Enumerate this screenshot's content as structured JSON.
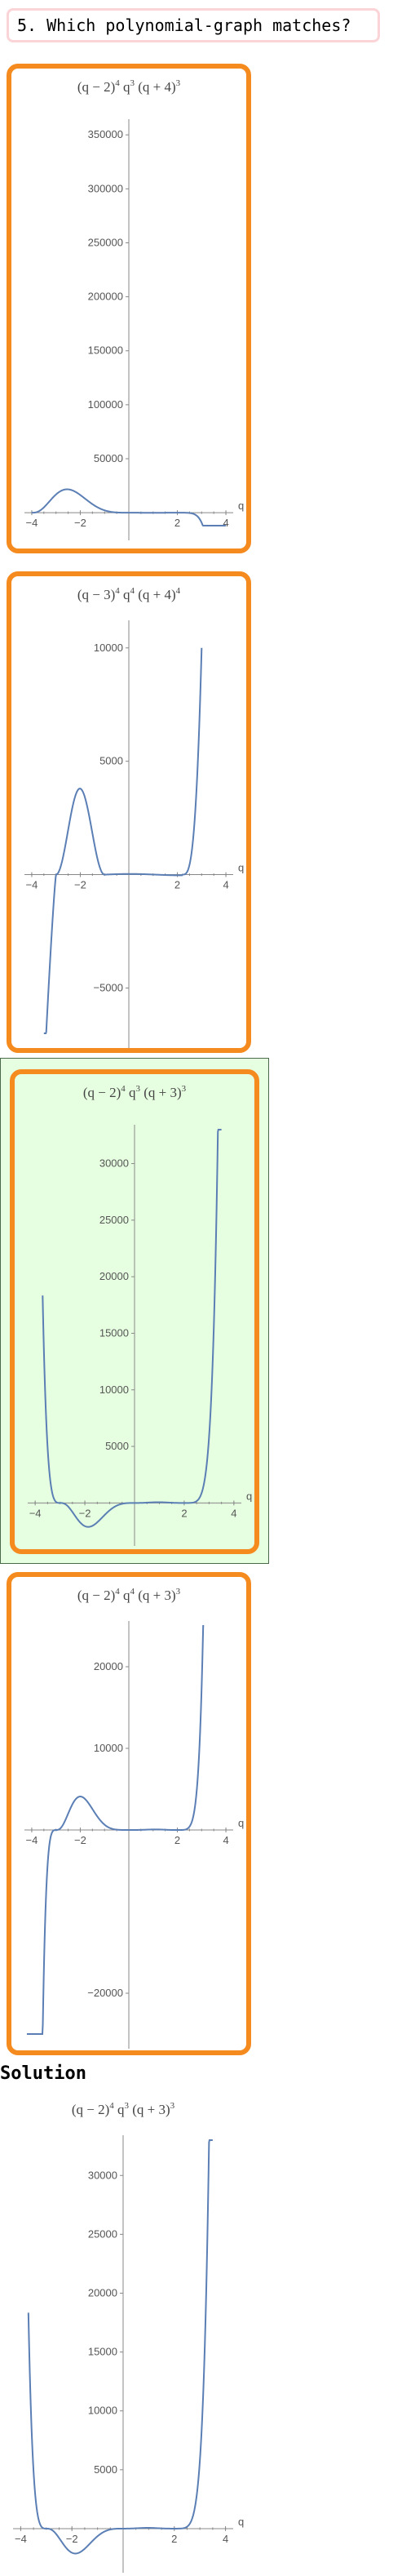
{
  "question": {
    "text": "5. Which polynomial-graph matches?"
  },
  "solution": {
    "label": "Solution"
  },
  "colors": {
    "option_border": "#f58a1f",
    "selected_bg": "#e6ffe0",
    "curve": "#5b7fb5",
    "question_border": "#fbd4d8"
  },
  "chart_data": [
    {
      "id": "opt1",
      "type": "line",
      "title": {
        "a": "(q − 2)",
        "ae": "4",
        "b": " q",
        "be": "3",
        "c": " (q + 4)",
        "ce": "3"
      },
      "xlabel": "q",
      "xlim": [
        -4.3,
        4.3
      ],
      "ylim": [
        -12000,
        360000
      ],
      "xticks": [
        -4,
        -2,
        2,
        4
      ],
      "xtick_labels": [
        "−4",
        "−2",
        "2",
        "4"
      ],
      "yticks": [
        50000,
        100000,
        150000,
        200000,
        250000,
        300000,
        350000
      ],
      "ytick_labels": [
        "50000",
        "100000",
        "150000",
        "200000",
        "250000",
        "300000",
        "350000"
      ],
      "coef": [
        [
          2,
          4
        ],
        [
          0,
          3
        ],
        [
          -4,
          3
        ]
      ],
      "sign": -1,
      "xrange": [
        -4,
        4
      ]
    },
    {
      "id": "opt2",
      "type": "line",
      "title": {
        "a": "(q − 3)",
        "ae": "4",
        "b": " q",
        "be": "4",
        "c": " (q + 4)",
        "ce": "4"
      },
      "xlabel": "q",
      "xlim": [
        -4.3,
        4.3
      ],
      "ylim": [
        -7000,
        11000
      ],
      "xticks": [
        -4,
        -2,
        2,
        4
      ],
      "xtick_labels": [
        "−4",
        "−2",
        "2",
        "4"
      ],
      "yticks": [
        -5000,
        5000,
        10000
      ],
      "ytick_labels": [
        "−5000",
        "5000",
        "10000"
      ],
      "note": "curve approximates the displayed plot",
      "xrange": [
        -3.5,
        3.0
      ]
    },
    {
      "id": "opt3",
      "type": "line",
      "title": {
        "a": "(q − 2)",
        "ae": "4",
        "b": " q",
        "be": "3",
        "c": " (q + 3)",
        "ce": "3"
      },
      "xlabel": "q",
      "xlim": [
        -4.3,
        4.3
      ],
      "ylim": [
        -2500,
        33000
      ],
      "xticks": [
        -4,
        -2,
        2,
        4
      ],
      "xtick_labels": [
        "−4",
        "−2",
        "2",
        "4"
      ],
      "yticks": [
        5000,
        10000,
        15000,
        20000,
        25000,
        30000
      ],
      "ytick_labels": [
        "5000",
        "10000",
        "15000",
        "20000",
        "25000",
        "30000"
      ],
      "coef": [
        [
          2,
          4
        ],
        [
          0,
          3
        ],
        [
          -3,
          3
        ]
      ],
      "sign": 1,
      "xrange": [
        -3.7,
        3.5
      ]
    },
    {
      "id": "opt4",
      "type": "line",
      "title": {
        "a": "(q − 2)",
        "ae": "4",
        "b": " q",
        "be": "4",
        "c": " (q + 3)",
        "ce": "3"
      },
      "xlabel": "q",
      "xlim": [
        -4.3,
        4.3
      ],
      "ylim": [
        -25000,
        25000
      ],
      "xticks": [
        -4,
        -2,
        2,
        4
      ],
      "xtick_labels": [
        "−4",
        "−2",
        "2",
        "4"
      ],
      "yticks": [
        -20000,
        10000,
        20000
      ],
      "ytick_labels": [
        "−20000",
        "10000",
        "20000"
      ],
      "coef": [
        [
          2,
          4
        ],
        [
          0,
          4
        ],
        [
          -3,
          3
        ]
      ],
      "sign": 1,
      "xrange": [
        -4.2,
        3.1
      ]
    },
    {
      "id": "solution",
      "type": "line",
      "title": {
        "a": "(q − 2)",
        "ae": "4",
        "b": " q",
        "be": "3",
        "c": " (q + 3)",
        "ce": "3"
      },
      "xlabel": "q",
      "xlim": [
        -4.3,
        4.3
      ],
      "ylim": [
        -2500,
        33000
      ],
      "xticks": [
        -4,
        -2,
        2,
        4
      ],
      "xtick_labels": [
        "−4",
        "−2",
        "2",
        "4"
      ],
      "yticks": [
        5000,
        10000,
        15000,
        20000,
        25000,
        30000
      ],
      "ytick_labels": [
        "5000",
        "10000",
        "15000",
        "20000",
        "25000",
        "30000"
      ],
      "coef": [
        [
          2,
          4
        ],
        [
          0,
          3
        ],
        [
          -3,
          3
        ]
      ],
      "sign": 1,
      "xrange": [
        -3.7,
        3.5
      ]
    }
  ]
}
